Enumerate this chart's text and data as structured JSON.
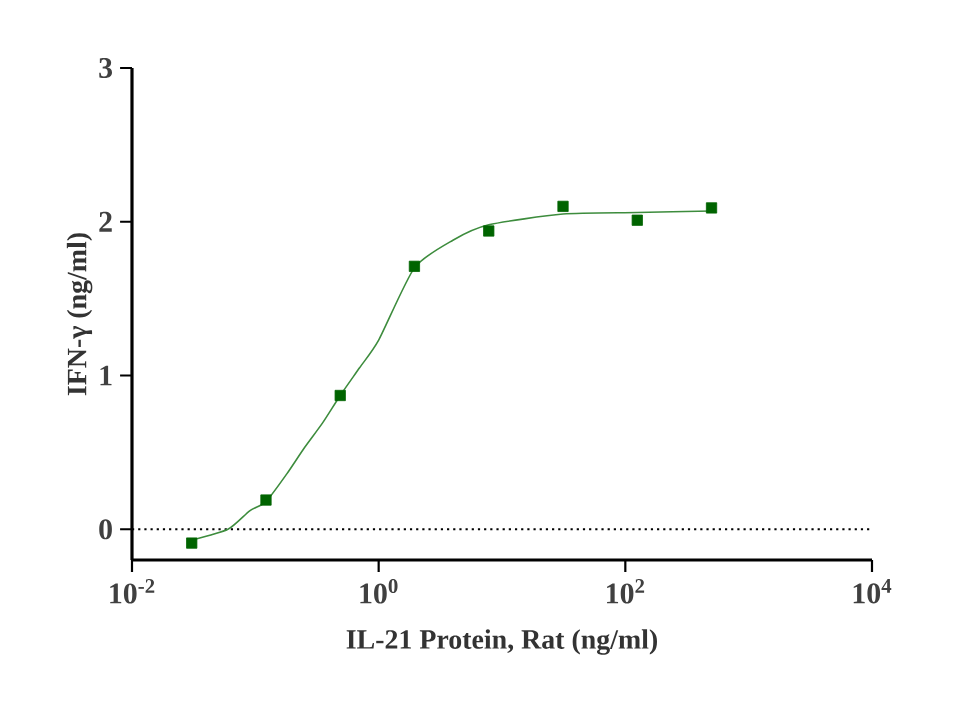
{
  "chart_data": {
    "type": "scatter",
    "xlabel": "IL-21 Protein, Rat  (ng/ml)",
    "ylabel": "IFN-γ (ng/ml)",
    "log": "x",
    "xlim": [
      0.01,
      10000
    ],
    "ylim": [
      -0.2,
      3
    ],
    "xticks": [
      {
        "value": 0.01,
        "label": "10$^{-2}$"
      },
      {
        "value": 1,
        "label": "10$^{0}$"
      },
      {
        "value": 100,
        "label": "10$^{2}$"
      },
      {
        "value": 10000,
        "label": "10$^{4}$"
      }
    ],
    "yticks": [
      0,
      1,
      2,
      3
    ],
    "ref_lines": [
      {
        "axis": "y",
        "value": 0,
        "line_style": "dotted",
        "color": "#000000"
      }
    ],
    "series": [
      {
        "color": "#006400",
        "marker": "square",
        "x": [
          0.0305,
          0.122,
          0.488,
          1.95,
          7.81,
          31.25,
          125,
          500
        ],
        "values": [
          -0.09,
          0.19,
          0.87,
          1.71,
          1.94,
          2.1,
          2.01,
          2.09
        ]
      },
      {
        "type": "line",
        "color": "#3d8c3d",
        "marker": "none",
        "line_style": "solid",
        "x": [
          0.0305,
          0.06,
          0.09,
          0.122,
          0.18,
          0.25,
          0.35,
          0.488,
          0.7,
          1,
          1.95,
          4,
          7.81,
          31.25,
          125,
          500
        ],
        "values": [
          -0.07,
          0.0,
          0.12,
          0.18,
          0.36,
          0.53,
          0.69,
          0.87,
          1.05,
          1.23,
          1.7,
          1.88,
          1.98,
          2.05,
          2.06,
          2.07
        ]
      }
    ]
  }
}
